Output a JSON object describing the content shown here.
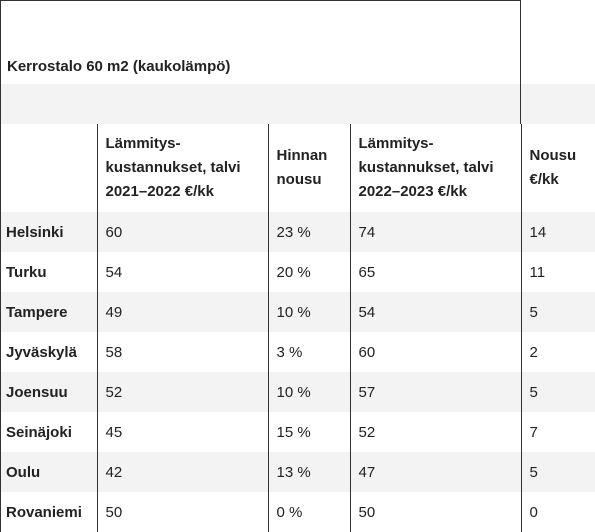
{
  "title": "Kerrostalo 60 m2 (kaukolämpö)",
  "columns": [
    "",
    "Lämmitys-kustannukset, talvi 2021–2022 €/kk",
    "Hinnan nousu",
    "Lämmitys-kustannukset, talvi 2022–2023 €/kk",
    "Nousu €/kk"
  ],
  "rows": [
    {
      "city": "Helsinki",
      "cost_2021_2022": "60",
      "price_increase": "23 %",
      "cost_2022_2023": "74",
      "increase_eur": "14"
    },
    {
      "city": "Turku",
      "cost_2021_2022": "54",
      "price_increase": "20 %",
      "cost_2022_2023": "65",
      "increase_eur": "11"
    },
    {
      "city": "Tampere",
      "cost_2021_2022": "49",
      "price_increase": "10 %",
      "cost_2022_2023": "54",
      "increase_eur": "5"
    },
    {
      "city": "Jyväskylä",
      "cost_2021_2022": "58",
      "price_increase": "3 %",
      "cost_2022_2023": "60",
      "increase_eur": "2"
    },
    {
      "city": "Joensuu",
      "cost_2021_2022": "52",
      "price_increase": "10 %",
      "cost_2022_2023": "57",
      "increase_eur": "5"
    },
    {
      "city": "Seinäjoki",
      "cost_2021_2022": "45",
      "price_increase": "15 %",
      "cost_2022_2023": "52",
      "increase_eur": "7"
    },
    {
      "city": "Oulu",
      "cost_2021_2022": "42",
      "price_increase": "13 %",
      "cost_2022_2023": "47",
      "increase_eur": "5"
    },
    {
      "city": "Rovaniemi",
      "cost_2021_2022": "50",
      "price_increase": "0 %",
      "cost_2022_2023": "50",
      "increase_eur": "0"
    }
  ]
}
